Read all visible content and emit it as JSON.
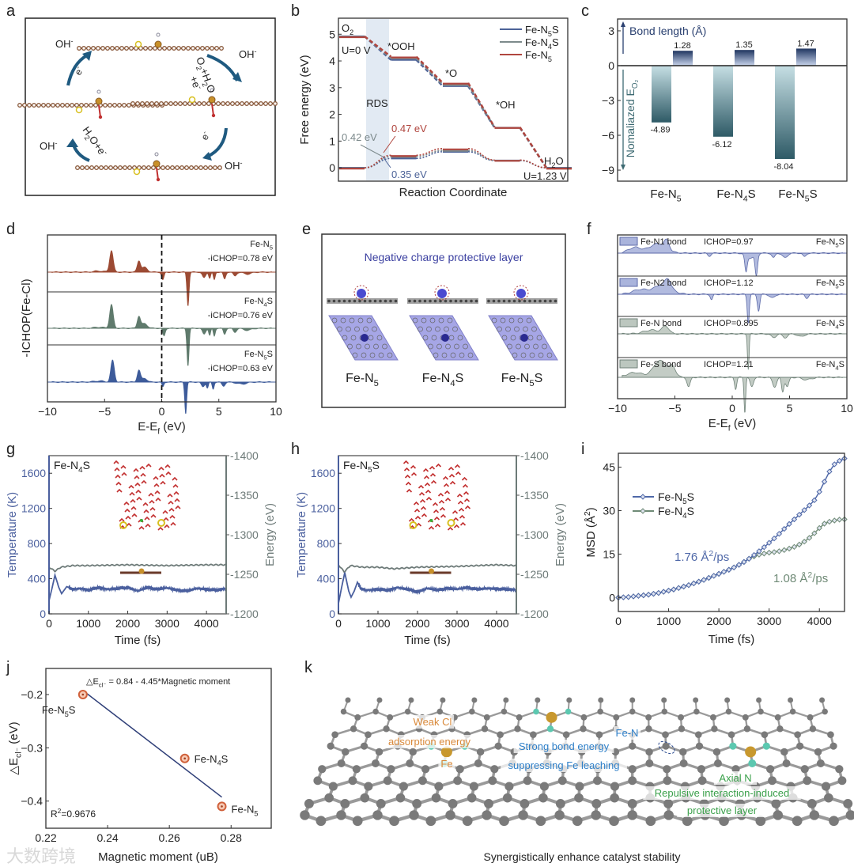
{
  "panel_letters": [
    "a",
    "b",
    "c",
    "d",
    "e",
    "f",
    "g",
    "h",
    "i",
    "j",
    "k"
  ],
  "watermark": "大数跨境",
  "colors": {
    "fe_n5": "#b0463f",
    "fe_n4s": "#7d8a8c",
    "fe_n5s": "#4d6398",
    "msd_n5s": "#4f68a8",
    "msd_n4s": "#6f8a76",
    "temp": "#4a5f9e",
    "energy": "#6d7a78",
    "arrow": "#1f5a80",
    "atom_c": "#8a5a3c"
  },
  "panel_a": {
    "labels": [
      "OH^{-}",
      "OH^{-}",
      "OH^{-}",
      "OH^{-}",
      "e^{-}",
      "e^{-}",
      "O_{2}+H_{2}O",
      "+e^{-}",
      "H_{2}O+e^{-}"
    ]
  },
  "panel_e": {
    "title": "Negative charge protective layer",
    "structures": [
      "Fe-N_{5}",
      "Fe-N_{4}S",
      "Fe-N_{5}S"
    ]
  },
  "panel_k": {
    "labels": {
      "weak_cl": "Weak Cl",
      "adsorption": "adsorption energy",
      "fe": "Fe",
      "fe_n": "Fe-N",
      "strong_bond": "Strong bond energy",
      "suppressing": "suppressing Fe leaching",
      "axial_n": "Axial N",
      "repulsive": "Repulsive interaction-induced",
      "protective": "protective layer"
    },
    "caption": "Synergistically enhance catalyst stability"
  },
  "chart_data": [
    {
      "id": "b",
      "type": "line",
      "xlabel": "Reaction Coordinate",
      "ylabel": "Free energy (eV)",
      "ylim": [
        -0.5,
        5.6
      ],
      "yticks": [
        0,
        1,
        2,
        3,
        4,
        5
      ],
      "steps": [
        "O_{2}",
        "*OOH",
        "*O",
        "*OH",
        "H_{2}O"
      ],
      "potentials": [
        "U=0 V",
        "U=1.23 V"
      ],
      "shaded_region": "RDS",
      "series": [
        {
          "name": "Fe-N_{5}S",
          "color": "#4d6398",
          "U0": [
            4.92,
            4.04,
            3.06,
            1.5,
            0
          ],
          "U123": [
            0,
            0.35,
            0.6,
            0.27,
            0
          ]
        },
        {
          "name": "Fe-N_{4}S",
          "color": "#7d8a8c",
          "U0": [
            4.92,
            4.11,
            3.11,
            1.51,
            0
          ],
          "U123": [
            0,
            0.42,
            0.65,
            0.28,
            0
          ]
        },
        {
          "name": "Fe-N_{5}",
          "color": "#b0463f",
          "U0": [
            4.92,
            4.16,
            3.18,
            1.52,
            0
          ],
          "U123": [
            0,
            0.47,
            0.72,
            0.29,
            0
          ]
        }
      ],
      "annotations": [
        {
          "text": "0.47 eV",
          "color": "#b0463f"
        },
        {
          "text": "0.42 eV",
          "color": "#7d8a8c"
        },
        {
          "text": "0.35 eV",
          "color": "#4d6398"
        }
      ]
    },
    {
      "id": "c",
      "type": "bar",
      "categories": [
        "Fe-N_{5}",
        "Fe-N_{4}S",
        "Fe-N_{5}S"
      ],
      "series": [
        {
          "name": "Bond length (Å)",
          "values": [
            1.28,
            1.35,
            1.47
          ]
        },
        {
          "name": "Nomaliazed E_{O₂}",
          "values": [
            -4.89,
            -6.12,
            -8.04
          ]
        }
      ],
      "value_labels": [
        [
          "1.28",
          "1.35",
          "1.47"
        ],
        [
          "-4.89",
          "-6.12",
          "-8.04"
        ]
      ],
      "ylim": [
        -9.95,
        4.02
      ],
      "yticks": [
        3,
        0,
        -3,
        -6,
        -9
      ]
    },
    {
      "id": "d",
      "type": "area",
      "xlabel": "E-E_{f} (eV)",
      "ylabel": "-ICHOP(Fe-Cl)",
      "xlim": [
        -10,
        10
      ],
      "xticks": [
        -10,
        -5,
        0,
        5,
        10
      ],
      "series": [
        {
          "name": "Fe-N_{5}",
          "note": "-iCHOP=0.78 eV",
          "color": "#9c4a33",
          "peaks": [
            [
              -4.4,
              0.55,
              0.22
            ],
            [
              -2.0,
              0.28,
              0.2
            ],
            [
              -1.5,
              0.12,
              0.35
            ],
            [
              -5.5,
              0.03,
              0.6
            ],
            [
              0.1,
              -0.2,
              0.15
            ],
            [
              2.3,
              -0.85,
              0.13
            ],
            [
              3.7,
              -0.15,
              0.2
            ],
            [
              4.2,
              -0.15,
              0.12
            ],
            [
              4.6,
              -0.2,
              0.12
            ],
            [
              5.5,
              -0.18,
              0.15
            ],
            [
              6.4,
              -0.1,
              0.2
            ],
            [
              7.5,
              -0.05,
              0.5
            ]
          ]
        },
        {
          "name": "Fe-N_{4}S",
          "note": "-iCHOP=0.76 eV",
          "color": "#5f7a6c",
          "peaks": [
            [
              -4.4,
              0.6,
              0.22
            ],
            [
              -2.0,
              0.3,
              0.2
            ],
            [
              -1.5,
              0.12,
              0.35
            ],
            [
              -5.5,
              0.03,
              0.6
            ],
            [
              0.2,
              -0.2,
              0.15
            ],
            [
              2.3,
              -0.95,
              0.13
            ],
            [
              3.7,
              -0.15,
              0.2
            ],
            [
              4.2,
              -0.18,
              0.12
            ],
            [
              4.6,
              -0.2,
              0.12
            ],
            [
              5.5,
              -0.15,
              0.15
            ],
            [
              6.4,
              -0.1,
              0.2
            ],
            [
              7.5,
              -0.05,
              0.5
            ]
          ]
        },
        {
          "name": "Fe-N_{5}S",
          "note": "-iCHOP=0.63 eV",
          "color": "#3d5b9a",
          "peaks": [
            [
              -4.3,
              0.55,
              0.22
            ],
            [
              -2.0,
              0.3,
              0.2
            ],
            [
              -1.5,
              0.1,
              0.3
            ],
            [
              -5.5,
              0.03,
              0.6
            ],
            [
              0.1,
              -0.12,
              0.12
            ],
            [
              2.1,
              -0.8,
              0.12
            ],
            [
              3.6,
              -0.12,
              0.2
            ],
            [
              4.0,
              -0.15,
              0.12
            ],
            [
              4.5,
              -0.18,
              0.12
            ],
            [
              5.4,
              -0.1,
              0.2
            ],
            [
              7.0,
              -0.05,
              0.6
            ]
          ]
        }
      ]
    },
    {
      "id": "f",
      "type": "area",
      "xlabel": "E-E_{f} (eV)",
      "xlim": [
        -10,
        10
      ],
      "xticks": [
        -10,
        -5,
        0,
        5,
        10
      ],
      "series": [
        {
          "name": "Fe-N1 bond",
          "ichop": "ICHOP=0.97",
          "system": "Fe-N_{5}S",
          "color": "#5c6aa8",
          "fill": "#aab4dc",
          "peaks": [
            [
              -8.5,
              0.12,
              0.8
            ],
            [
              -6.5,
              0.2,
              1.0
            ],
            [
              -5.7,
              0.18,
              0.3
            ],
            [
              -2,
              -0.06,
              0.2
            ],
            [
              1.2,
              -0.35,
              0.15
            ],
            [
              2.1,
              -0.45,
              0.15
            ],
            [
              1.6,
              -0.1,
              0.5
            ],
            [
              3.6,
              -0.1,
              0.2
            ],
            [
              4.6,
              -0.1,
              0.3
            ],
            [
              6.3,
              -0.08,
              0.2
            ]
          ]
        },
        {
          "name": "Fe-N2 bond",
          "ichop": "ICHOP=1.12",
          "system": "Fe-N_{5}S",
          "color": "#5c6aa8",
          "fill": "#aab4dc",
          "peaks": [
            [
              -8,
              0.1,
              1.0
            ],
            [
              -6,
              0.22,
              1.0
            ],
            [
              -5.6,
              0.15,
              0.3
            ],
            [
              -1.8,
              -0.12,
              0.15
            ],
            [
              1.4,
              -0.6,
              0.13
            ],
            [
              2.3,
              -0.35,
              0.15
            ],
            [
              3.5,
              -0.08,
              0.3
            ],
            [
              6.5,
              -0.08,
              0.2
            ]
          ]
        },
        {
          "name": "Fe-N bond",
          "ichop": "ICHOP=0.895",
          "system": "Fe-N_{4}S",
          "color": "#6f8278",
          "fill": "#bcc7bf",
          "peaks": [
            [
              -7,
              0.08,
              1.0
            ],
            [
              -5.8,
              0.15,
              0.4
            ],
            [
              1.4,
              -0.75,
              0.1
            ],
            [
              3.6,
              -0.08,
              0.3
            ],
            [
              4.6,
              -0.08,
              0.3
            ],
            [
              6,
              -0.06,
              0.4
            ]
          ]
        },
        {
          "name": "Fe-S bond",
          "ichop": "ICHOP=1.21",
          "system": "Fe-N_{4}S",
          "color": "#6f8278",
          "fill": "#bcc7bf",
          "peaks": [
            [
              -8.5,
              0.1,
              1.0
            ],
            [
              -6.3,
              0.35,
              0.8
            ],
            [
              -5.2,
              0.2,
              0.4
            ],
            [
              -3.8,
              -0.2,
              0.2
            ],
            [
              0.3,
              -0.25,
              0.13
            ],
            [
              1.1,
              -0.75,
              0.1
            ],
            [
              1.7,
              -0.2,
              0.2
            ],
            [
              3.7,
              -0.2,
              0.25
            ],
            [
              4.4,
              -0.3,
              0.15
            ],
            [
              4.8,
              -0.2,
              0.2
            ],
            [
              6.5,
              -0.05,
              0.6
            ]
          ]
        }
      ]
    },
    {
      "id": "g",
      "type": "line",
      "system": "Fe-N_{4}S",
      "xlabel": "Time (fs)",
      "ylabel": "Temperature (K)",
      "y2label": "Energy (eV)",
      "xlim": [
        0,
        4500
      ],
      "xticks": [
        0,
        1000,
        2000,
        3000,
        4000
      ],
      "ylim": [
        0,
        1800
      ],
      "yticks": [
        0,
        400,
        800,
        1200,
        1600
      ],
      "y2lim": [
        -1200,
        -1400
      ],
      "y2ticks": [
        -1200,
        -1250,
        -1300,
        -1350,
        -1400
      ],
      "temperature": [
        [
          0,
          150
        ],
        [
          80,
          300
        ],
        [
          150,
          440
        ],
        [
          250,
          300
        ],
        [
          320,
          230
        ],
        [
          450,
          310
        ],
        [
          600,
          280
        ],
        [
          800,
          290
        ],
        [
          1000,
          270
        ],
        [
          1250,
          300
        ],
        [
          1500,
          280
        ],
        [
          1750,
          290
        ],
        [
          2000,
          300
        ],
        [
          2250,
          260
        ],
        [
          2500,
          300
        ],
        [
          2750,
          280
        ],
        [
          3000,
          295
        ],
        [
          3250,
          270
        ],
        [
          3500,
          260
        ],
        [
          3750,
          290
        ],
        [
          4000,
          280
        ],
        [
          4250,
          270
        ],
        [
          4500,
          290
        ]
      ],
      "energy": [
        [
          0,
          -1259
        ],
        [
          150,
          -1254
        ],
        [
          300,
          -1259
        ],
        [
          600,
          -1261
        ],
        [
          1000,
          -1261
        ],
        [
          2000,
          -1262
        ],
        [
          3000,
          -1261
        ],
        [
          4000,
          -1262
        ],
        [
          4500,
          -1262
        ]
      ]
    },
    {
      "id": "h",
      "type": "line",
      "system": "Fe-N_{5}S",
      "xlabel": "Time (fs)",
      "ylabel": "Temperature (K)",
      "y2label": "Energy (eV)",
      "xlim": [
        0,
        4500
      ],
      "xticks": [
        0,
        1000,
        2000,
        3000,
        4000
      ],
      "ylim": [
        0,
        1800
      ],
      "yticks": [
        0,
        400,
        800,
        1200,
        1600
      ],
      "y2lim": [
        -1200,
        -1400
      ],
      "y2ticks": [
        -1200,
        -1250,
        -1300,
        -1350,
        -1400
      ],
      "temperature": [
        [
          0,
          120
        ],
        [
          80,
          300
        ],
        [
          160,
          470
        ],
        [
          260,
          260
        ],
        [
          320,
          190
        ],
        [
          400,
          260
        ],
        [
          480,
          360
        ],
        [
          560,
          290
        ],
        [
          700,
          270
        ],
        [
          1000,
          280
        ],
        [
          1250,
          270
        ],
        [
          1500,
          300
        ],
        [
          1750,
          280
        ],
        [
          2000,
          250
        ],
        [
          2250,
          290
        ],
        [
          2500,
          270
        ],
        [
          2750,
          290
        ],
        [
          3000,
          280
        ],
        [
          3250,
          300
        ],
        [
          3500,
          280
        ],
        [
          3750,
          290
        ],
        [
          4000,
          285
        ],
        [
          4250,
          280
        ],
        [
          4500,
          275
        ]
      ],
      "energy": [
        [
          0,
          -1262
        ],
        [
          150,
          -1253
        ],
        [
          300,
          -1261
        ],
        [
          600,
          -1259
        ],
        [
          1000,
          -1259
        ],
        [
          1400,
          -1257
        ],
        [
          2000,
          -1259
        ],
        [
          3000,
          -1260
        ],
        [
          4000,
          -1262
        ],
        [
          4500,
          -1261
        ]
      ]
    },
    {
      "id": "i",
      "type": "line",
      "xlabel": "Time (fs)",
      "ylabel": "MSD (Å^{2})",
      "xlim": [
        0,
        4500
      ],
      "xticks": [
        0,
        1000,
        2000,
        3000,
        4000
      ],
      "ylim": [
        -4.8,
        49.8
      ],
      "yticks": [
        0,
        15,
        30,
        45
      ],
      "x_step_fs": 100,
      "series": [
        {
          "name": "Fe-N_{5}S",
          "color": "#4f68a8",
          "rate": "1.76 Å^{2}/ps",
          "values": [
            0,
            0.1,
            0.2,
            0.4,
            0.6,
            0.8,
            1.0,
            1.3,
            1.6,
            2.0,
            2.4,
            2.8,
            3.3,
            3.8,
            4.3,
            4.9,
            5.5,
            6.1,
            6.8,
            7.5,
            8.2,
            8.9,
            9.6,
            10.4,
            11.3,
            12.3,
            13.4,
            14.7,
            16.0,
            17.4,
            18.9,
            20.4,
            22.0,
            23.7,
            25.4,
            27.0,
            28.6,
            30.2,
            31.8,
            33.6,
            36.5,
            40.0,
            43.5,
            46.0,
            47.2,
            48.0
          ]
        },
        {
          "name": "Fe-N_{4}S",
          "color": "#6f8a76",
          "rate": "1.08 Å^{2}/ps",
          "values": [
            0,
            0.1,
            0.2,
            0.4,
            0.6,
            0.8,
            1.0,
            1.3,
            1.6,
            2.0,
            2.4,
            2.8,
            3.3,
            3.8,
            4.3,
            4.9,
            5.5,
            6.1,
            6.8,
            7.5,
            8.2,
            8.9,
            9.6,
            10.4,
            11.3,
            12.3,
            13.4,
            14.2,
            14.8,
            15.2,
            15.5,
            15.7,
            16.0,
            16.4,
            16.9,
            17.5,
            18.3,
            19.3,
            20.6,
            22.2,
            24.0,
            25.5,
            26.2,
            26.6,
            26.9,
            27.0
          ]
        }
      ]
    },
    {
      "id": "j",
      "type": "scatter",
      "xlabel": "Magnetic moment (uB)",
      "ylabel": "△E_{cl⁻} (eV)",
      "xlim": [
        0.22,
        0.293
      ],
      "xticks": [
        0.22,
        0.24,
        0.26,
        0.28
      ],
      "ylim": [
        -0.451,
        -0.151
      ],
      "yticks": [
        -0.2,
        -0.3,
        -0.4
      ],
      "points": [
        {
          "label": "Fe-N_{5}S",
          "x": 0.232,
          "y": -0.2
        },
        {
          "label": "Fe-N_{4}S",
          "x": 0.265,
          "y": -0.32
        },
        {
          "label": "Fe-N_{5}",
          "x": 0.277,
          "y": -0.41
        }
      ],
      "fit": {
        "intercept": 0.84,
        "slope": -4.45,
        "x_range": [
          0.232,
          0.277
        ],
        "equation": "△E_{cl⁻}  = 0.84 - 4.45*Magnetic moment",
        "r2": "R^{2}=0.9676"
      }
    }
  ]
}
